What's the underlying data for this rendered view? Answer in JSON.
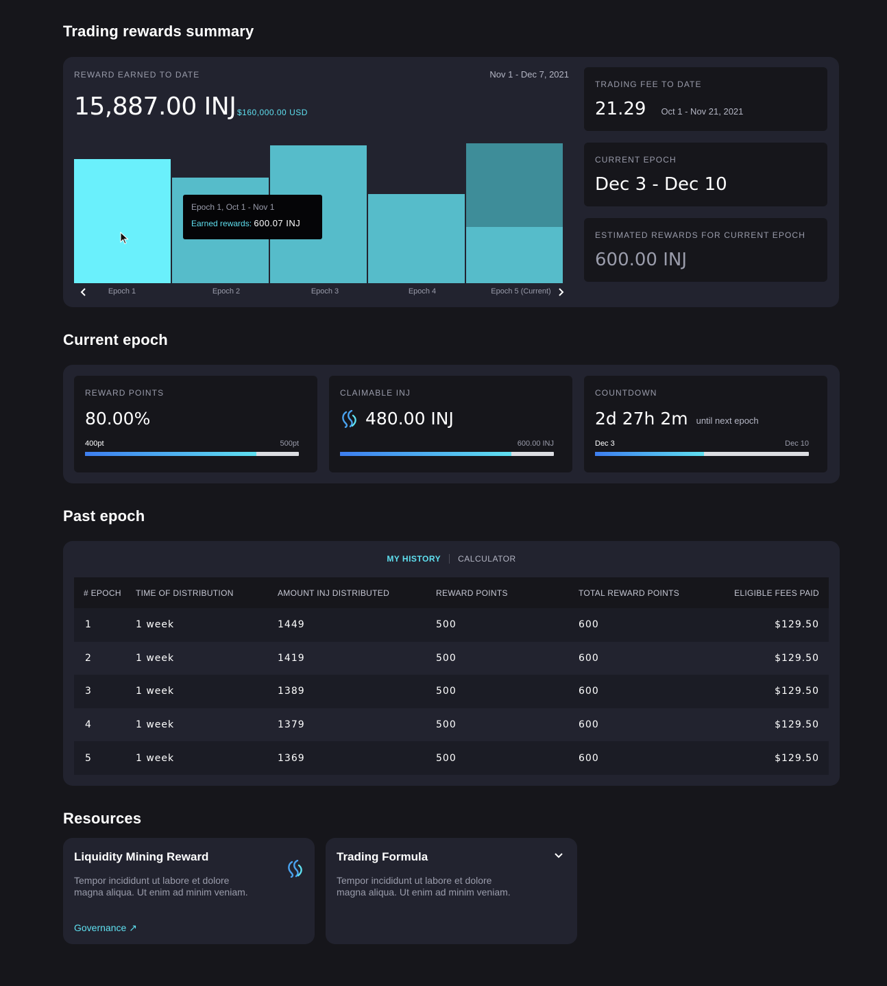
{
  "summary": {
    "title": "Trading rewards summary",
    "reward_label": "REWARD EARNED TO DATE",
    "reward_range": "Nov 1 - Dec 7, 2021",
    "reward_value": "15,887.00 INJ",
    "reward_usd": "$160,000.00 USD",
    "fee_label": "TRADING FEE TO DATE",
    "fee_value": "21.29",
    "fee_range": "Oct 1 - Nov 21, 2021",
    "current_epoch_label": "CURRENT EPOCH",
    "current_epoch_value": "Dec 3 - Dec 10",
    "estimated_label": "ESTIMATED REWARDS FOR CURRENT EPOCH",
    "estimated_value": "600.00 INJ",
    "tooltip_title": "Epoch 1, Oct 1 - Nov 1",
    "tooltip_label": "Earned rewards:",
    "tooltip_value": "600.07 INJ"
  },
  "chart_data": {
    "type": "bar",
    "categories": [
      "Epoch 1",
      "Epoch 2",
      "Epoch 3",
      "Epoch 4",
      "Epoch 5 (Current)"
    ],
    "values": [
      181,
      154,
      201,
      130,
      204
    ],
    "current_projected": 204,
    "current_earned": 82,
    "ylim": [
      0,
      212
    ],
    "highlighted_index": 0,
    "colors": {
      "highlight": "#6af0fc",
      "bar": "#56bcca",
      "projected": "#3e8d99"
    }
  },
  "current_epoch": {
    "title": "Current epoch",
    "reward_points": {
      "label": "REWARD POINTS",
      "value": "80.00%",
      "left": "400pt",
      "right": "500pt",
      "progress": 0.8
    },
    "claimable": {
      "label": "CLAIMABLE INJ",
      "value": "480.00 INJ",
      "left": "",
      "right": "600.00 INJ",
      "progress": 0.8
    },
    "countdown": {
      "label": "COUNTDOWN",
      "value": "2d 27h 2m",
      "after": "until next epoch",
      "left": "Dec 3",
      "right": "Dec 10",
      "progress": 0.51
    }
  },
  "past_epoch": {
    "title": "Past epoch",
    "tabs": [
      "MY HISTORY",
      "CALCULATOR"
    ],
    "headers": [
      "# EPOCH",
      "TIME OF DISTRIBUTION",
      "AMOUNT INJ DISTRIBUTED",
      "REWARD POINTS",
      "TOTAL REWARD POINTS",
      "ELIGIBLE FEES PAID"
    ],
    "rows": [
      [
        "1",
        "1 week",
        "1449",
        "500",
        "600",
        "$129.50"
      ],
      [
        "2",
        "1 week",
        "1419",
        "500",
        "600",
        "$129.50"
      ],
      [
        "3",
        "1 week",
        "1389",
        "500",
        "600",
        "$129.50"
      ],
      [
        "4",
        "1 week",
        "1379",
        "500",
        "600",
        "$129.50"
      ],
      [
        "5",
        "1 week",
        "1369",
        "500",
        "600",
        "$129.50"
      ]
    ]
  },
  "resources": {
    "title": "Resources",
    "cards": [
      {
        "title": "Liquidity Mining Reward",
        "body": "Tempor incididunt ut labore et dolore magna aliqua. Ut enim ad minim veniam.",
        "link": "Governance ↗",
        "icon": "injective-logo-icon"
      },
      {
        "title": "Trading Formula",
        "body": "Tempor incididunt ut labore et dolore magna aliqua. Ut enim ad minim veniam.",
        "icon": "chevron-down-icon"
      }
    ]
  }
}
